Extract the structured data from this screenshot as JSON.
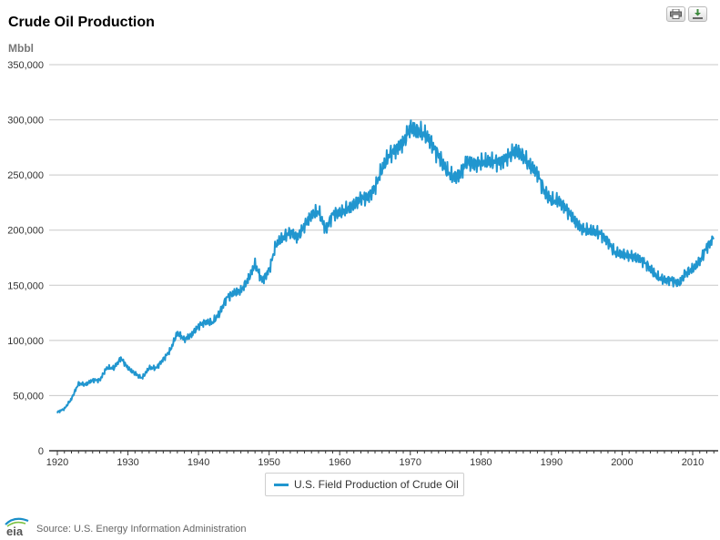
{
  "header": {
    "title": "Crude Oil Production",
    "unit": "Mbbl"
  },
  "toolbar": {
    "print_icon": "printer-icon",
    "download_icon": "download-icon"
  },
  "legend": {
    "label": "U.S. Field Production of Crude Oil",
    "color": "#2196cf"
  },
  "footer": {
    "source": "Source: U.S. Energy Information Administration",
    "logo_text": "eia"
  },
  "chart_data": {
    "type": "line",
    "title": "Crude Oil Production",
    "ylabel": "Mbbl",
    "xlim": [
      1920,
      2013
    ],
    "ylim": [
      0,
      350000
    ],
    "y_ticks": [
      0,
      50000,
      100000,
      150000,
      200000,
      250000,
      300000,
      350000
    ],
    "y_tick_labels": [
      "0",
      "50,000",
      "100,000",
      "150,000",
      "200,000",
      "250,000",
      "300,000",
      "350,000"
    ],
    "x_ticks": [
      1920,
      1930,
      1940,
      1950,
      1960,
      1970,
      1980,
      1990,
      2000,
      2010
    ],
    "x_tick_labels": [
      "1920",
      "1930",
      "1940",
      "1950",
      "1960",
      "1970",
      "1980",
      "1990",
      "2000",
      "2010"
    ],
    "grid": "horizontal",
    "legend_position": "bottom-center",
    "series": [
      {
        "name": "U.S. Field Production of Crude Oil",
        "color": "#2196cf",
        "x": [
          1920,
          1921,
          1922,
          1923,
          1924,
          1925,
          1926,
          1927,
          1928,
          1929,
          1930,
          1931,
          1932,
          1933,
          1934,
          1935,
          1936,
          1937,
          1938,
          1939,
          1940,
          1941,
          1942,
          1943,
          1944,
          1945,
          1946,
          1947,
          1948,
          1949,
          1950,
          1951,
          1952,
          1953,
          1954,
          1955,
          1956,
          1957,
          1958,
          1959,
          1960,
          1961,
          1962,
          1963,
          1964,
          1965,
          1966,
          1967,
          1968,
          1969,
          1970,
          1971,
          1972,
          1973,
          1974,
          1975,
          1976,
          1977,
          1978,
          1979,
          1980,
          1981,
          1982,
          1983,
          1984,
          1985,
          1986,
          1987,
          1988,
          1989,
          1990,
          1991,
          1992,
          1993,
          1994,
          1995,
          1996,
          1997,
          1998,
          1999,
          2000,
          2001,
          2002,
          2003,
          2004,
          2005,
          2006,
          2007,
          2008,
          2009,
          2010,
          2011,
          2012,
          2013
        ],
        "values": [
          35000,
          38000,
          47000,
          61000,
          60000,
          64000,
          64000,
          75000,
          75000,
          84000,
          75000,
          70000,
          66000,
          75000,
          75000,
          83000,
          91000,
          107000,
          101000,
          105000,
          113000,
          117000,
          116000,
          125000,
          139000,
          143000,
          145000,
          155000,
          169000,
          154000,
          164000,
          187000,
          193000,
          199000,
          193000,
          204000,
          214000,
          217000,
          200000,
          215000,
          215000,
          219000,
          223000,
          228000,
          230000,
          239000,
          255000,
          268000,
          274000,
          279000,
          293000,
          290000,
          287000,
          279000,
          268000,
          255000,
          248000,
          250000,
          262000,
          260000,
          262000,
          261000,
          262000,
          263000,
          267000,
          272000,
          267000,
          258000,
          252000,
          235000,
          226000,
          227000,
          220000,
          211000,
          203000,
          200000,
          198000,
          197000,
          190000,
          179000,
          178000,
          177000,
          175000,
          172000,
          165000,
          157000,
          155000,
          155000,
          151000,
          161000,
          165000,
          171000,
          185000,
          193000
        ]
      }
    ]
  }
}
